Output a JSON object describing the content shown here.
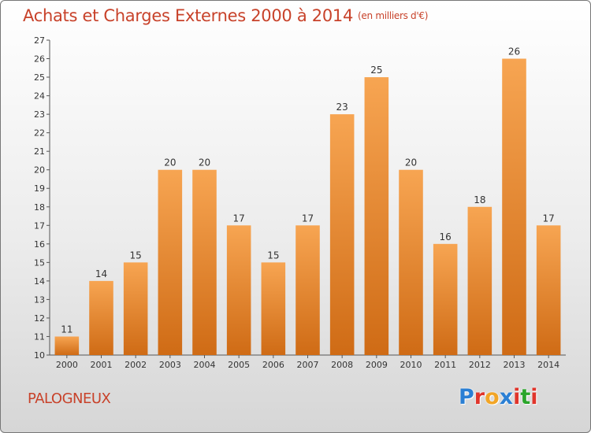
{
  "title": "Achats et Charges Externes 2000 à 2014",
  "unit": "(en milliers d'€)",
  "commune": "PALOGNEUX",
  "logo": {
    "letters": [
      "P",
      "r",
      "o",
      "x",
      "i",
      "t",
      "i"
    ],
    "colors": [
      "#2a7fd4",
      "#e0352b",
      "#f2a526",
      "#2a7fd4",
      "#e0352b",
      "#2aa52a",
      "#e0352b"
    ]
  },
  "colors": {
    "bar_top": "#f7a552",
    "bar_bottom": "#cf6b15",
    "title": "#c8422a"
  },
  "chart_data": {
    "type": "bar",
    "title": "Achats et Charges Externes 2000 à 2014",
    "xlabel": "",
    "ylabel": "",
    "categories": [
      "2000",
      "2001",
      "2002",
      "2003",
      "2004",
      "2005",
      "2006",
      "2007",
      "2008",
      "2009",
      "2010",
      "2011",
      "2012",
      "2013",
      "2014"
    ],
    "values": [
      11,
      14,
      15,
      20,
      20,
      17,
      15,
      17,
      23,
      25,
      20,
      16,
      18,
      26,
      17
    ],
    "ylim": [
      10,
      27
    ],
    "yticks": [
      10,
      11,
      12,
      13,
      14,
      15,
      16,
      17,
      18,
      19,
      20,
      21,
      22,
      23,
      24,
      25,
      26,
      27
    ],
    "grid": false,
    "data_labels": true
  }
}
